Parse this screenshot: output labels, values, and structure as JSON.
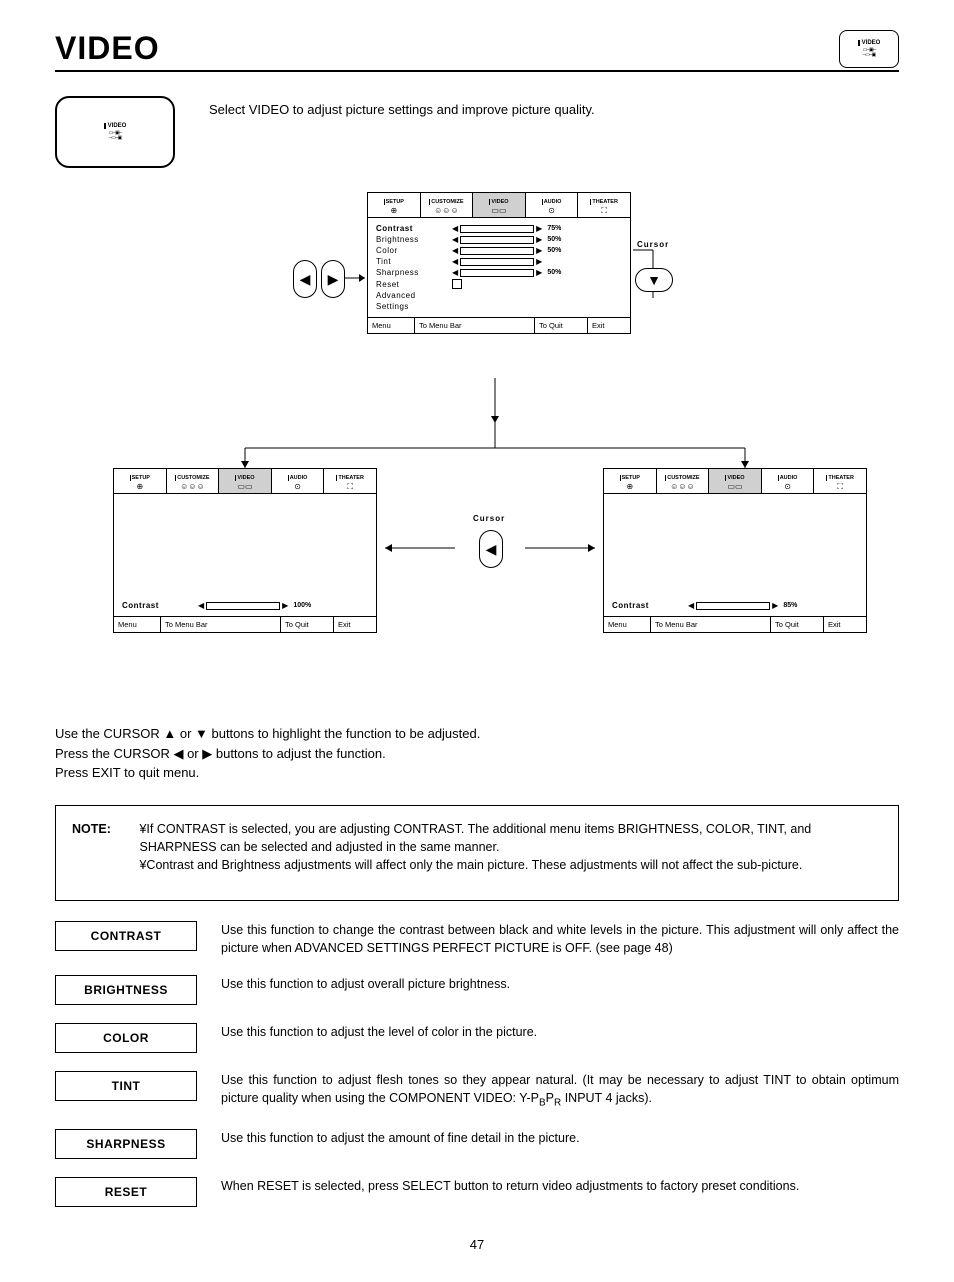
{
  "page_title": "VIDEO",
  "page_number": "47",
  "mini_icon_label": "VIDEO",
  "intro_text": "Select VIDEO to adjust picture settings and improve picture quality.",
  "tabs": [
    "SETUP",
    "CUSTOMIZE",
    "VIDEO",
    "AUDIO",
    "THEATER"
  ],
  "tab_icons": [
    "⊕",
    "☺☺☺",
    "▭▭",
    "⊙",
    "⛶"
  ],
  "main_menu": {
    "items": [
      {
        "label": "Contrast",
        "bold": true,
        "value": "75%",
        "fill": 75,
        "type": "slider"
      },
      {
        "label": "Brightness",
        "value": "50%",
        "fill": 50,
        "type": "slider"
      },
      {
        "label": "Color",
        "value": "50%",
        "fill": 50,
        "type": "slider"
      },
      {
        "label": "Tint",
        "value": "",
        "fill": 50,
        "type": "tint"
      },
      {
        "label": "Sharpness",
        "value": "50%",
        "fill": 50,
        "type": "slider"
      },
      {
        "label": "Reset",
        "type": "check"
      },
      {
        "label": "Advanced",
        "type": "none"
      },
      {
        "label": "  Settings",
        "type": "none"
      }
    ]
  },
  "footer": {
    "menu": "Menu",
    "bar": "To Menu Bar",
    "quit": "To Quit",
    "exit": "Exit"
  },
  "cursor_label": "Cursor",
  "bottom_left": {
    "label": "Contrast",
    "value": "100%",
    "fill": 100
  },
  "bottom_right": {
    "label": "Contrast",
    "value": "85%",
    "fill": 85
  },
  "instructions": [
    "Use the CURSOR ▲ or ▼ buttons to highlight the function to be adjusted.",
    "Press the CURSOR ◀ or ▶ buttons to adjust the function.",
    "Press EXIT to quit menu."
  ],
  "note_label": "NOTE:",
  "note_lines": [
    "¥If CONTRAST is selected, you are adjusting CONTRAST.  The additional menu items BRIGHTNESS, COLOR, TINT, and SHARPNESS can be selected and adjusted in the same manner.",
    "¥Contrast and Brightness adjustments will affect only the main picture. These adjustments will not affect the sub-picture."
  ],
  "defs": [
    {
      "label": "CONTRAST",
      "text": "Use this function to change the contrast between black and white levels in the picture.  This adjustment will only affect the picture when ADVANCED SETTINGS PERFECT PICTURE is OFF. (see page 48)"
    },
    {
      "label": "BRIGHTNESS",
      "text": "Use this function to adjust overall picture brightness."
    },
    {
      "label": "COLOR",
      "text": "Use this function to adjust the level of color in the picture."
    },
    {
      "label": "TINT",
      "text": "Use this function to adjust flesh tones so they appear natural. (It may be necessary to adjust TINT to obtain optimum picture quality when using the COMPONENT VIDEO: Y-P",
      "sub": "B",
      "text2": "P",
      "sub2": "R",
      "text3": " INPUT 4 jacks)."
    },
    {
      "label": "SHARPNESS",
      "text": "Use this function to adjust the amount of fine detail in the picture."
    },
    {
      "label": "RESET",
      "text": "When RESET is selected, press SELECT button to return video adjustments to factory preset conditions."
    }
  ]
}
